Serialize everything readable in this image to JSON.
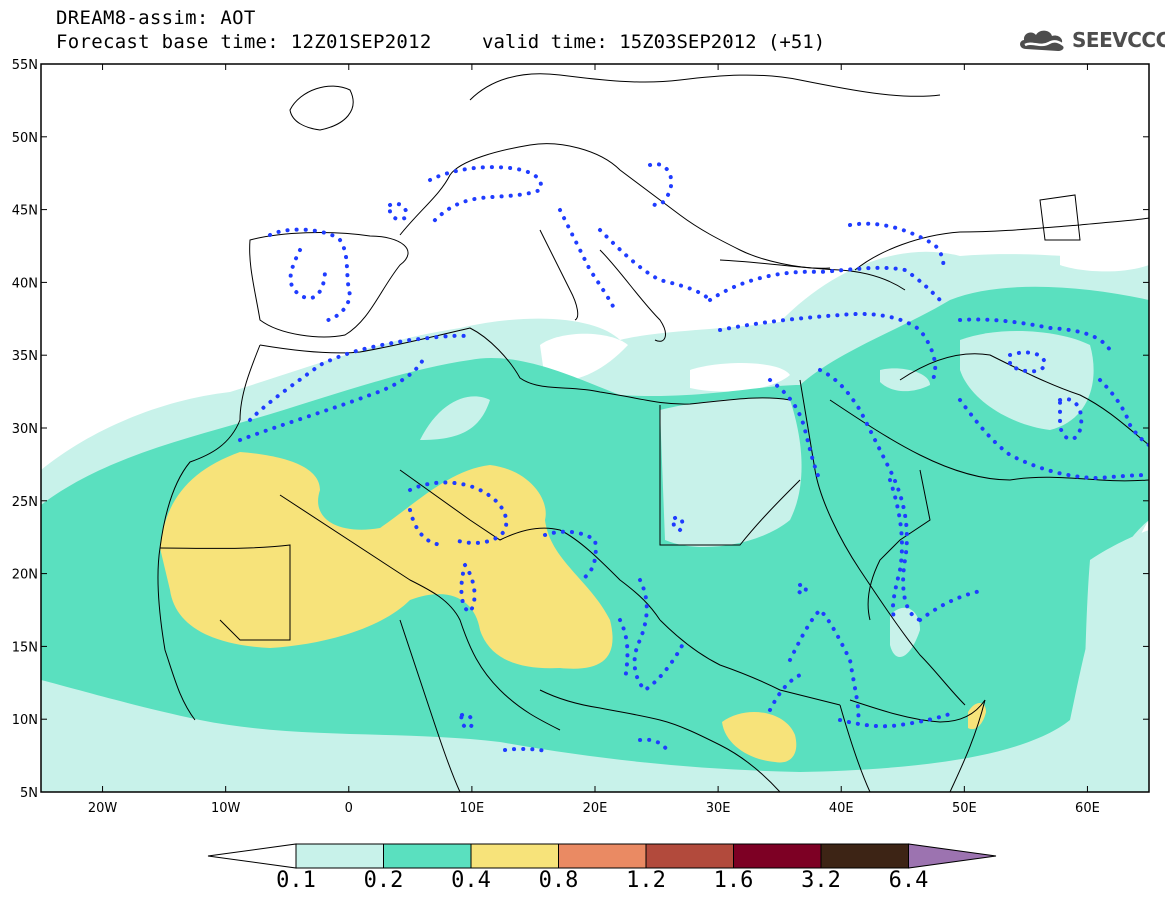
{
  "header": {
    "title_line1": "DREAM8-assim: AOT",
    "title_line2": "Forecast base time: 12Z01SEP2012",
    "valid_time": "valid time: 15Z03SEP2012 (+51)",
    "logo_text": "SEEVCCC",
    "logo_icon": "cloud-icon"
  },
  "map": {
    "lat_labels": [
      "55N",
      "50N",
      "45N",
      "40N",
      "35N",
      "30N",
      "25N",
      "20N",
      "15N",
      "10N",
      "5N"
    ],
    "lon_labels": [
      "20W",
      "10W",
      "0",
      "10E",
      "20E",
      "30E",
      "40E",
      "50E",
      "60E"
    ],
    "colors": {
      "level_0_1": "#c8f2ea",
      "level_0_2": "#5ae0bf",
      "level_0_4": "#f7e37a",
      "land_border": "#000000",
      "dust_contour": "#1f3cff"
    }
  },
  "colorbar": {
    "labels": [
      "0.1",
      "0.2",
      "0.4",
      "0.8",
      "1.2",
      "1.6",
      "3.2",
      "6.4"
    ],
    "colors": [
      "#c8f2ea",
      "#5ae0bf",
      "#f7e37a",
      "#ea8a63",
      "#b24a3c",
      "#7d0024",
      "#3d2415",
      "#9c73b0"
    ]
  }
}
